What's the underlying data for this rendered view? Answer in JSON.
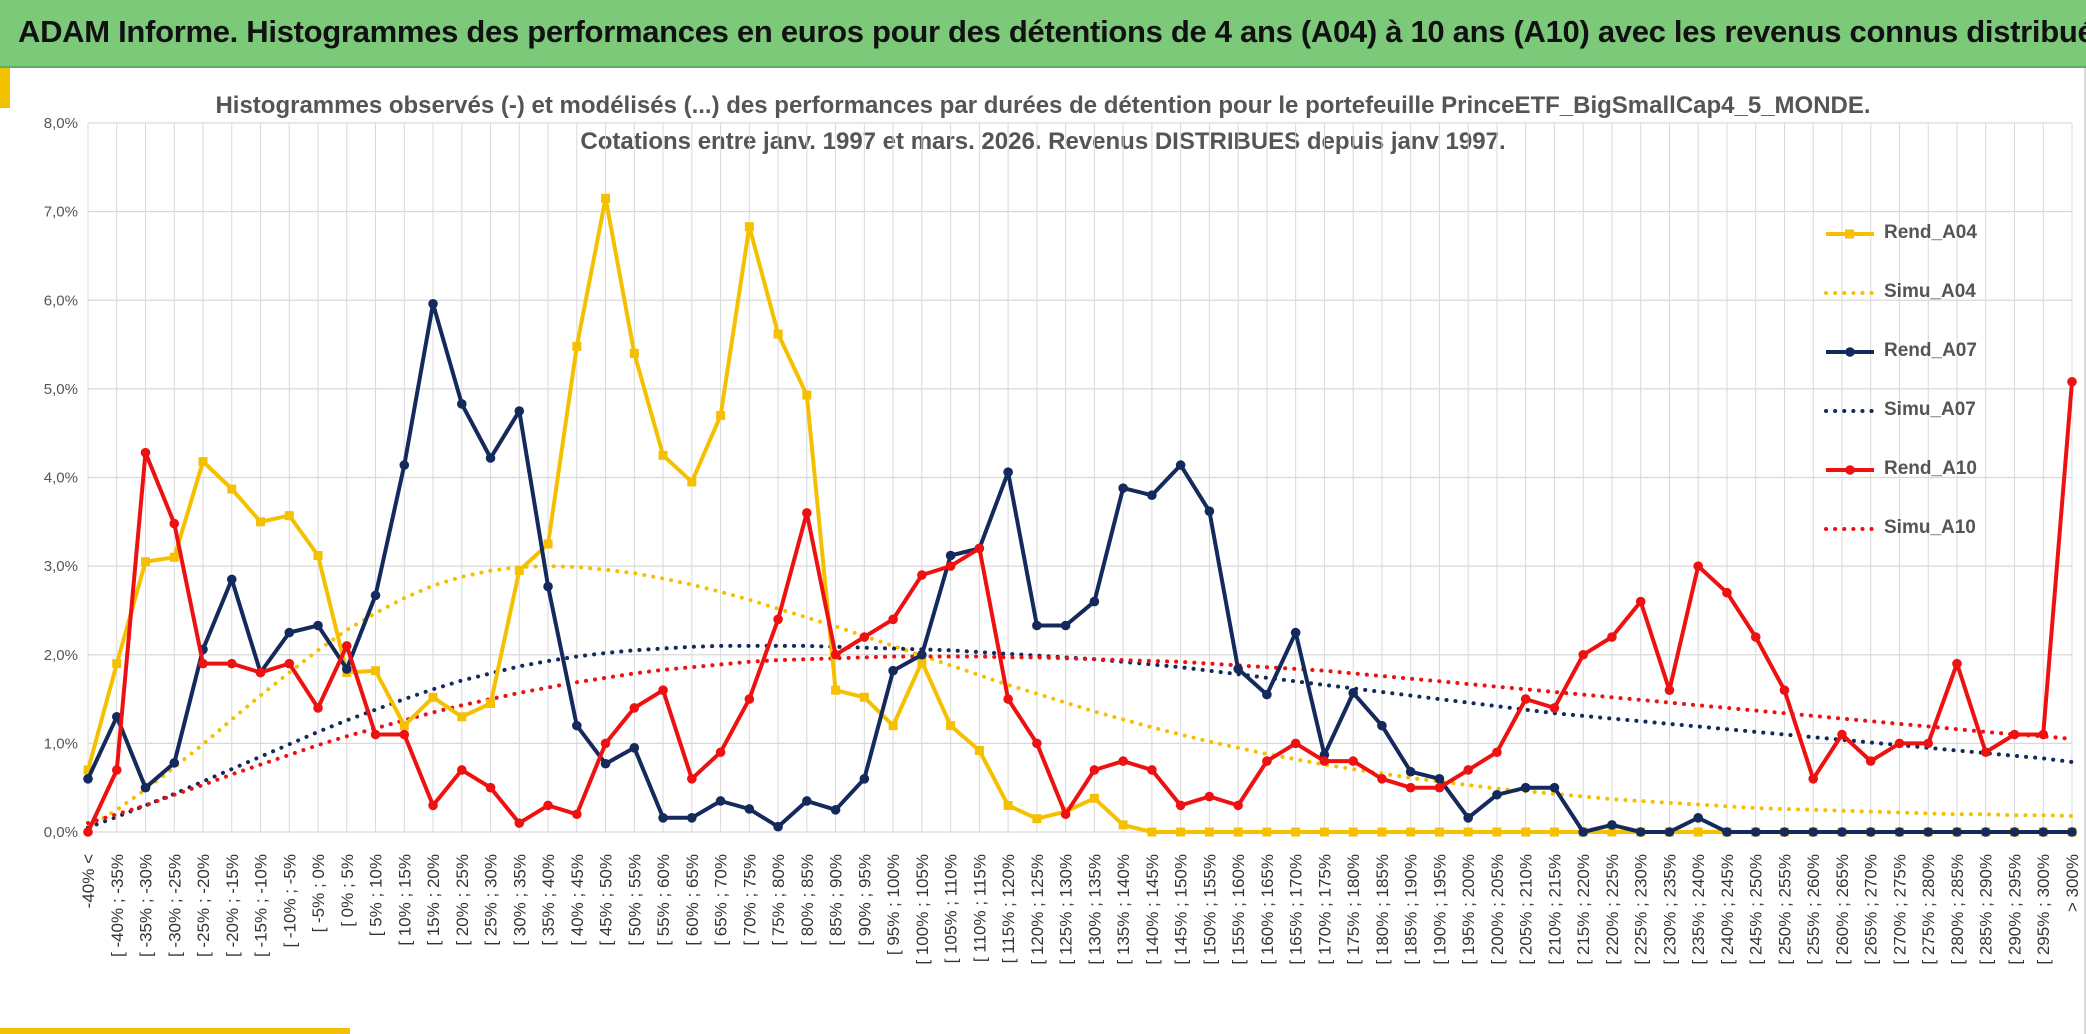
{
  "banner": {
    "title": "ADAM Informe. Histogrammes des performances en euros pour des détentions de 4 ans (A04) à 10 ans (A10) avec les revenus connus distribués"
  },
  "colors": {
    "banner_bg": "#7dc97a",
    "accent": "#f2c200",
    "rend_a04": "#f5c000",
    "rend_a07": "#142a5c",
    "rend_a10": "#ee1111",
    "grid": "#d9d9d9",
    "text": "#555555"
  },
  "chart_data": {
    "type": "line",
    "title_lines": [
      "Histogrammes observés (-) et modélisés (...) des performances par durées de détention pour le portefeuille PrinceETF_BigSmallCap4_5_MONDE.",
      "Cotations entre janv. 1997 et mars. 2026. Revenus DISTRIBUES depuis janv 1997."
    ],
    "y_range": [
      0,
      8
    ],
    "y_ticks": [
      "0,0%",
      "1,0%",
      "2,0%",
      "3,0%",
      "4,0%",
      "5,0%",
      "6,0%",
      "7,0%",
      "8,0%"
    ],
    "grid": true,
    "legend_position": "right",
    "categories": [
      "-40% <",
      "[ -40% ; -35%",
      "[ -35% ; -30%",
      "[ -30% ; -25%",
      "[ -25% ; -20%",
      "[ -20% ; -15%",
      "[ -15% ; -10%",
      "[ -10% ; -5%",
      "[ -5% ; 0%",
      "[ 0% ; 5%",
      "[ 5% ; 10%",
      "[ 10% ; 15%",
      "[ 15% ; 20%",
      "[ 20% ; 25%",
      "[ 25% ; 30%",
      "[ 30% ; 35%",
      "[ 35% ; 40%",
      "[ 40% ; 45%",
      "[ 45% ; 50%",
      "[ 50% ; 55%",
      "[ 55% ; 60%",
      "[ 60% ; 65%",
      "[ 65% ; 70%",
      "[ 70% ; 75%",
      "[ 75% ; 80%",
      "[ 80% ; 85%",
      "[ 85% ; 90%",
      "[ 90% ; 95%",
      "[ 95% ; 100%",
      "[ 100% ; 105%",
      "[ 105% ; 110%",
      "[ 110% ; 115%",
      "[ 115% ; 120%",
      "[ 120% ; 125%",
      "[ 125% ; 130%",
      "[ 130% ; 135%",
      "[ 135% ; 140%",
      "[ 140% ; 145%",
      "[ 145% ; 150%",
      "[ 150% ; 155%",
      "[ 155% ; 160%",
      "[ 160% ; 165%",
      "[ 165% ; 170%",
      "[ 170% ; 175%",
      "[ 175% ; 180%",
      "[ 180% ; 185%",
      "[ 185% ; 190%",
      "[ 190% ; 195%",
      "[ 195% ; 200%",
      "[ 200% ; 205%",
      "[ 205% ; 210%",
      "[ 210% ; 215%",
      "[ 215% ; 220%",
      "[ 220% ; 225%",
      "[ 225% ; 230%",
      "[ 230% ; 235%",
      "[ 235% ; 240%",
      "[ 240% ; 245%",
      "[ 245% ; 250%",
      "[ 250% ; 255%",
      "[ 255% ; 260%",
      "[ 260% ; 265%",
      "[ 265% ; 270%",
      "[ 270% ; 275%",
      "[ 275% ; 280%",
      "[ 280% ; 285%",
      "[ 285% ; 290%",
      "[ 290% ; 295%",
      "[ 295% ; 300%",
      "> 300%"
    ],
    "series": [
      {
        "name": "Rend_A04",
        "style": "solid",
        "marker": "square",
        "color": "#f5c000",
        "values": [
          0.7,
          1.9,
          3.05,
          3.1,
          4.18,
          3.87,
          3.5,
          3.57,
          3.12,
          1.8,
          1.82,
          1.2,
          1.52,
          1.3,
          1.45,
          2.95,
          3.25,
          5.48,
          7.15,
          5.4,
          4.25,
          3.95,
          4.7,
          6.83,
          5.62,
          4.93,
          1.6,
          1.52,
          1.2,
          1.92,
          1.2,
          0.92,
          0.3,
          0.15,
          0.23,
          0.38,
          0.08,
          0.0,
          0.0,
          0.0,
          0.0,
          0.0,
          0.0,
          0.0,
          0.0,
          0.0,
          0.0,
          0.0,
          0.0,
          0.0,
          0.0,
          0.0,
          0.0,
          0.0,
          0.0,
          0.0,
          0.0,
          0.0,
          0.0,
          0.0,
          0.0,
          0.0,
          0.0,
          0.0,
          0.0,
          0.0,
          0.0,
          0.0,
          0.0,
          0.0
        ]
      },
      {
        "name": "Simu_A04",
        "style": "dotted",
        "marker": "none",
        "color": "#f5c000",
        "values": [
          0.05,
          0.25,
          0.48,
          0.73,
          0.99,
          1.27,
          1.54,
          1.8,
          2.05,
          2.28,
          2.47,
          2.64,
          2.78,
          2.88,
          2.95,
          2.99,
          3.0,
          2.99,
          2.96,
          2.92,
          2.86,
          2.79,
          2.71,
          2.62,
          2.52,
          2.42,
          2.32,
          2.21,
          2.1,
          1.99,
          1.88,
          1.77,
          1.66,
          1.56,
          1.46,
          1.36,
          1.27,
          1.18,
          1.1,
          1.02,
          0.95,
          0.88,
          0.82,
          0.76,
          0.71,
          0.66,
          0.61,
          0.57,
          0.53,
          0.49,
          0.46,
          0.43,
          0.4,
          0.37,
          0.35,
          0.33,
          0.31,
          0.29,
          0.27,
          0.26,
          0.25,
          0.24,
          0.23,
          0.22,
          0.21,
          0.2,
          0.2,
          0.19,
          0.19,
          0.18
        ]
      },
      {
        "name": "Rend_A07",
        "style": "solid",
        "marker": "circle",
        "color": "#142a5c",
        "values": [
          0.6,
          1.3,
          0.5,
          0.78,
          2.06,
          2.85,
          1.8,
          2.25,
          2.33,
          1.84,
          2.67,
          4.14,
          5.96,
          4.83,
          4.22,
          4.75,
          2.77,
          1.2,
          0.77,
          0.95,
          0.16,
          0.16,
          0.35,
          0.26,
          0.06,
          0.35,
          0.25,
          0.6,
          1.82,
          2.0,
          3.12,
          3.2,
          4.06,
          2.33,
          2.33,
          2.6,
          3.88,
          3.8,
          4.14,
          3.62,
          1.84,
          1.55,
          2.25,
          0.87,
          1.57,
          1.2,
          0.68,
          0.6,
          0.16,
          0.42,
          0.5,
          0.5,
          0.0,
          0.08,
          0.0,
          0.0,
          0.16,
          0.0,
          0.0,
          0.0,
          0.0,
          0.0,
          0.0,
          0.0,
          0.0,
          0.0,
          0.0,
          0.0,
          0.0,
          0.0
        ]
      },
      {
        "name": "Simu_A07",
        "style": "dotted",
        "marker": "none",
        "color": "#142a5c",
        "values": [
          0.05,
          0.17,
          0.3,
          0.43,
          0.57,
          0.71,
          0.85,
          0.99,
          1.13,
          1.26,
          1.38,
          1.5,
          1.61,
          1.71,
          1.79,
          1.87,
          1.93,
          1.98,
          2.02,
          2.05,
          2.07,
          2.09,
          2.1,
          2.1,
          2.1,
          2.1,
          2.09,
          2.08,
          2.07,
          2.06,
          2.05,
          2.03,
          2.01,
          1.99,
          1.97,
          1.95,
          1.92,
          1.89,
          1.86,
          1.82,
          1.78,
          1.74,
          1.7,
          1.66,
          1.62,
          1.58,
          1.54,
          1.5,
          1.46,
          1.42,
          1.38,
          1.34,
          1.31,
          1.28,
          1.25,
          1.22,
          1.19,
          1.16,
          1.13,
          1.1,
          1.07,
          1.04,
          1.01,
          0.98,
          0.95,
          0.92,
          0.89,
          0.86,
          0.83,
          0.79
        ]
      },
      {
        "name": "Rend_A10",
        "style": "solid",
        "marker": "circle",
        "color": "#ee1111",
        "values": [
          0.0,
          0.7,
          4.28,
          3.48,
          1.9,
          1.9,
          1.8,
          1.9,
          1.4,
          2.1,
          1.1,
          1.1,
          0.3,
          0.7,
          0.5,
          0.1,
          0.3,
          0.2,
          1.0,
          1.4,
          1.6,
          0.6,
          0.9,
          1.5,
          2.4,
          3.6,
          2.0,
          2.2,
          2.4,
          2.9,
          3.0,
          3.2,
          1.5,
          1.0,
          0.2,
          0.7,
          0.8,
          0.7,
          0.3,
          0.4,
          0.3,
          0.8,
          1.0,
          0.8,
          0.8,
          0.6,
          0.5,
          0.5,
          0.7,
          0.9,
          1.5,
          1.4,
          2.0,
          2.2,
          2.6,
          1.6,
          3.0,
          2.7,
          2.2,
          1.6,
          0.6,
          1.1,
          0.8,
          1.0,
          1.0,
          1.9,
          0.9,
          1.1,
          1.1,
          5.08
        ]
      },
      {
        "name": "Simu_A10",
        "style": "dotted",
        "marker": "none",
        "color": "#ee1111",
        "values": [
          0.1,
          0.2,
          0.3,
          0.42,
          0.53,
          0.65,
          0.76,
          0.87,
          0.98,
          1.08,
          1.17,
          1.26,
          1.35,
          1.43,
          1.5,
          1.57,
          1.63,
          1.69,
          1.74,
          1.79,
          1.83,
          1.86,
          1.89,
          1.92,
          1.94,
          1.95,
          1.96,
          1.97,
          1.98,
          1.98,
          1.98,
          1.98,
          1.97,
          1.97,
          1.96,
          1.95,
          1.94,
          1.93,
          1.92,
          1.9,
          1.88,
          1.86,
          1.84,
          1.82,
          1.79,
          1.76,
          1.73,
          1.7,
          1.67,
          1.64,
          1.61,
          1.58,
          1.55,
          1.52,
          1.49,
          1.46,
          1.43,
          1.4,
          1.37,
          1.34,
          1.31,
          1.28,
          1.25,
          1.22,
          1.19,
          1.16,
          1.13,
          1.1,
          1.08,
          1.05
        ]
      }
    ]
  }
}
